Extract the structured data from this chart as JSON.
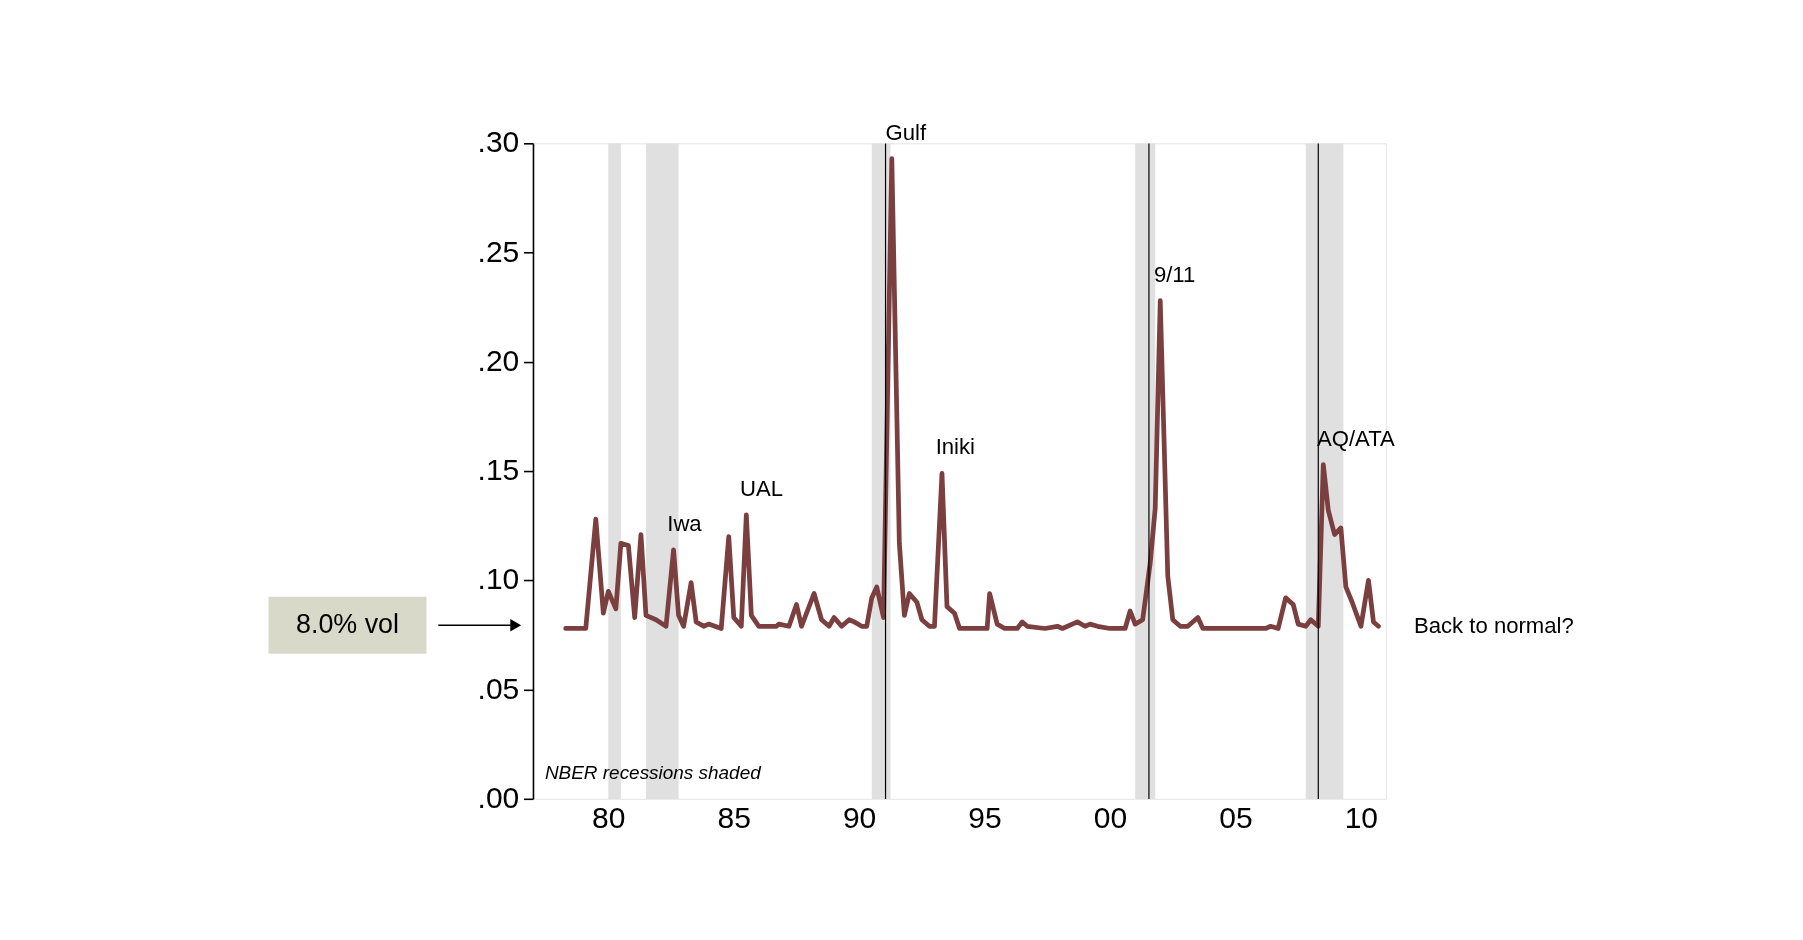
{
  "chart_data": {
    "type": "line",
    "x": [
      1978.3,
      1979.1,
      1979.5,
      1979.8,
      1980.0,
      1980.3,
      1980.5,
      1980.8,
      1981.05,
      1981.3,
      1981.5,
      1981.9,
      1982.3,
      1982.6,
      1982.8,
      1983.0,
      1983.3,
      1983.5,
      1983.8,
      1984.0,
      1984.5,
      1984.8,
      1985.0,
      1985.3,
      1985.5,
      1985.7,
      1986.0,
      1986.7,
      1986.8,
      1987.2,
      1987.5,
      1987.7,
      1988.2,
      1988.5,
      1988.8,
      1989.0,
      1989.3,
      1989.6,
      1989.8,
      1990.1,
      1990.3,
      1990.5,
      1990.7,
      1990.97,
      1991.3,
      1991.6,
      1991.8,
      1992.0,
      1992.3,
      1992.5,
      1992.8,
      1993.0,
      1993.3,
      1993.5,
      1993.8,
      1994.0,
      1995.1,
      1995.2,
      1995.5,
      1995.8,
      1996.3,
      1996.5,
      1996.7,
      1997.4,
      1997.9,
      1998.1,
      1998.7,
      1999.0,
      1999.2,
      1999.5,
      2000.0,
      2000.6,
      2000.8,
      2001.0,
      2001.3,
      2001.6,
      2001.8,
      2002.0,
      2002.3,
      2002.5,
      2002.8,
      2003.1,
      2003.5,
      2003.7,
      2004.4,
      2005.5,
      2006.2,
      2006.4,
      2006.7,
      2007.0,
      2007.3,
      2007.5,
      2007.8,
      2008.0,
      2008.3,
      2008.5,
      2008.7,
      2008.95,
      2009.2,
      2009.4,
      2009.65,
      2010.0,
      2010.3,
      2010.5,
      2010.7
    ],
    "series": [
      {
        "color": "#7b3f3f",
        "values": [
          0.078,
          0.078,
          0.128,
          0.085,
          0.095,
          0.087,
          0.117,
          0.116,
          0.083,
          0.121,
          0.084,
          0.082,
          0.079,
          0.114,
          0.084,
          0.079,
          0.099,
          0.081,
          0.079,
          0.08,
          0.078,
          0.12,
          0.083,
          0.079,
          0.13,
          0.084,
          0.079,
          0.079,
          0.08,
          0.079,
          0.089,
          0.079,
          0.094,
          0.082,
          0.079,
          0.083,
          0.079,
          0.082,
          0.081,
          0.079,
          0.079,
          0.092,
          0.097,
          0.083,
          0.293,
          0.117,
          0.084,
          0.094,
          0.09,
          0.082,
          0.079,
          0.079,
          0.149,
          0.088,
          0.085,
          0.078,
          0.078,
          0.094,
          0.08,
          0.078,
          0.078,
          0.081,
          0.079,
          0.078,
          0.079,
          0.078,
          0.081,
          0.079,
          0.08,
          0.079,
          0.078,
          0.078,
          0.086,
          0.08,
          0.082,
          0.108,
          0.133,
          0.228,
          0.102,
          0.082,
          0.079,
          0.079,
          0.083,
          0.078,
          0.078,
          0.078,
          0.078,
          0.079,
          0.078,
          0.092,
          0.089,
          0.08,
          0.079,
          0.082,
          0.079,
          0.153,
          0.132,
          0.121,
          0.124,
          0.097,
          0.09,
          0.079,
          0.1,
          0.081,
          0.079
        ]
      }
    ],
    "xlim": [
      1977,
      2011
    ],
    "ylim": [
      0,
      0.3
    ],
    "xticks": [
      {
        "value": 1980,
        "label": "80"
      },
      {
        "value": 1985,
        "label": "85"
      },
      {
        "value": 1990,
        "label": "90"
      },
      {
        "value": 1995,
        "label": "95"
      },
      {
        "value": 2000,
        "label": "00"
      },
      {
        "value": 2005,
        "label": "05"
      },
      {
        "value": 2010,
        "label": "10"
      }
    ],
    "yticks": [
      {
        "value": 0,
        "label": ".00"
      },
      {
        "value": 0.05,
        "label": ".05"
      },
      {
        "value": 0.1,
        "label": ".10"
      },
      {
        "value": 0.15,
        "label": ".15"
      },
      {
        "value": 0.2,
        "label": ".20"
      },
      {
        "value": 0.25,
        "label": ".25"
      },
      {
        "value": 0.3,
        "label": ".30"
      }
    ],
    "grid": false,
    "marker": "none",
    "line_style": "solid",
    "bands": [
      {
        "axis": "x",
        "from": 1980.0,
        "to": 1980.5,
        "color": "#e0e0e0"
      },
      {
        "axis": "x",
        "from": 1981.5,
        "to": 1982.8,
        "color": "#e0e0e0"
      },
      {
        "axis": "x",
        "from": 1990.5,
        "to": 1991.25,
        "color": "#e0e0e0"
      },
      {
        "axis": "x",
        "from": 2001.0,
        "to": 2001.8,
        "color": "#e0e0e0"
      },
      {
        "axis": "x",
        "from": 2007.8,
        "to": 2009.3,
        "color": "#e0e0e0"
      }
    ],
    "ref_lines": [
      {
        "axis": "x",
        "value": 1991.05,
        "color": "#000000"
      },
      {
        "axis": "x",
        "value": 2001.55,
        "color": "#000000"
      },
      {
        "axis": "x",
        "value": 2008.3,
        "color": "#000000"
      }
    ],
    "annotations": [
      {
        "text": "Iwa",
        "x": 1982.6,
        "y": 0.114
      },
      {
        "text": "UAL",
        "x": 1985.5,
        "y": 0.13
      },
      {
        "text": "Gulf",
        "x": 1991.3,
        "y": 0.293
      },
      {
        "text": "Iniki",
        "x": 1993.3,
        "y": 0.149
      },
      {
        "text": "9/11",
        "x": 2002.0,
        "y": 0.228
      },
      {
        "text": "AQ/ATA",
        "x": 2008.5,
        "y": 0.153
      },
      {
        "text": "Back to normal?",
        "x": 2010.7,
        "y": 0.079
      },
      "8.0% vol",
      "NBER recessions shaded"
    ]
  }
}
